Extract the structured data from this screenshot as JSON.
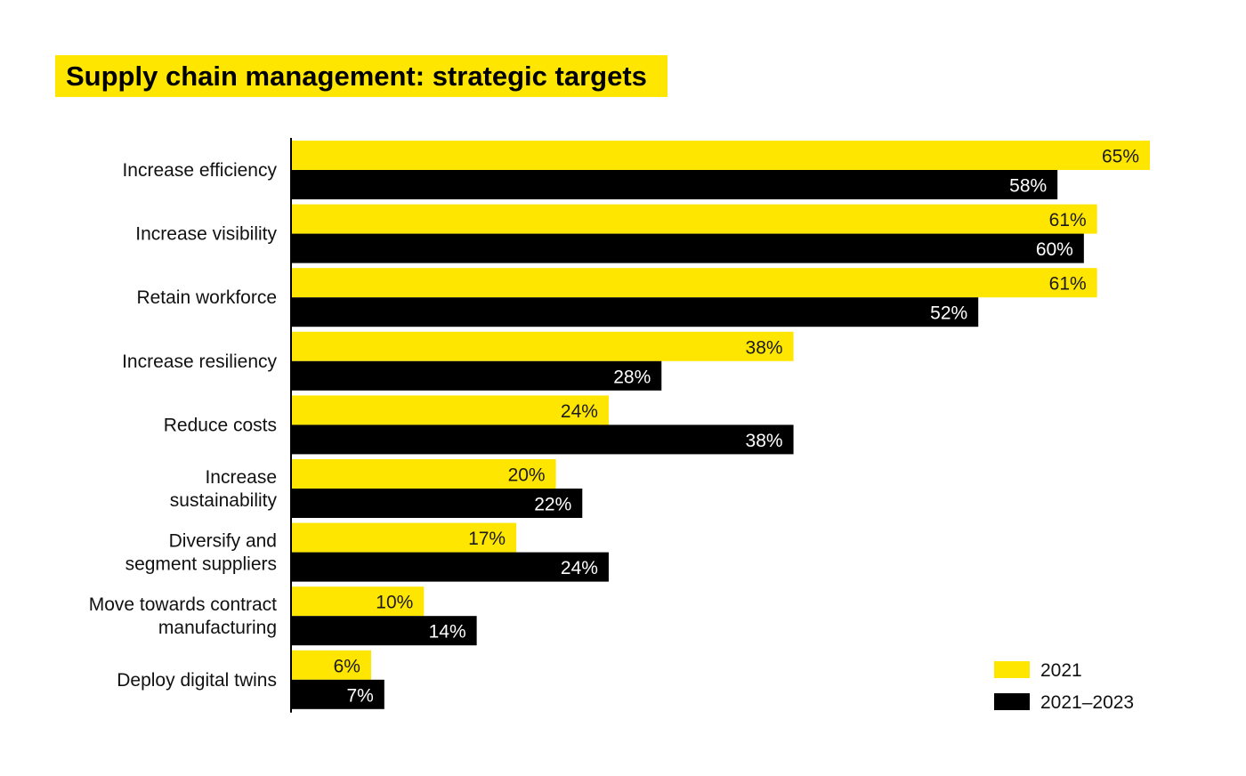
{
  "colors": {
    "series_2021": "#ffe600",
    "series_2021_2023": "#000000",
    "label_on_yellow": "#1a1a1a",
    "label_on_black": "#ffffff"
  },
  "chart_data": {
    "type": "bar",
    "orientation": "horizontal",
    "title": "Supply chain management: strategic targets",
    "categories": [
      "Increase efficiency",
      "Increase visibility",
      "Retain workforce",
      "Increase resiliency",
      "Reduce costs",
      "Increase sustainability",
      "Diversify and segment suppliers",
      "Move towards contract manufacturing",
      "Deploy digital twins"
    ],
    "series": [
      {
        "name": "2021",
        "color": "#ffe600",
        "values": [
          65,
          61,
          61,
          38,
          24,
          20,
          17,
          10,
          6
        ]
      },
      {
        "name": "2021–2023",
        "color": "#000000",
        "values": [
          58,
          60,
          52,
          28,
          38,
          22,
          24,
          14,
          7
        ]
      }
    ],
    "value_labels": {
      "2021": [
        "65%",
        "61%",
        "61%",
        "38%",
        "24%",
        "20%",
        "17%",
        "10%",
        "6%"
      ],
      "2021–2023": [
        "58%",
        "60%",
        "52%",
        "28%",
        "38%",
        "22%",
        "24%",
        "14%",
        "7%"
      ]
    },
    "xlim": [
      0,
      65
    ],
    "grid": false,
    "legend_position": "bottom-right",
    "xlabel": "",
    "ylabel": ""
  }
}
